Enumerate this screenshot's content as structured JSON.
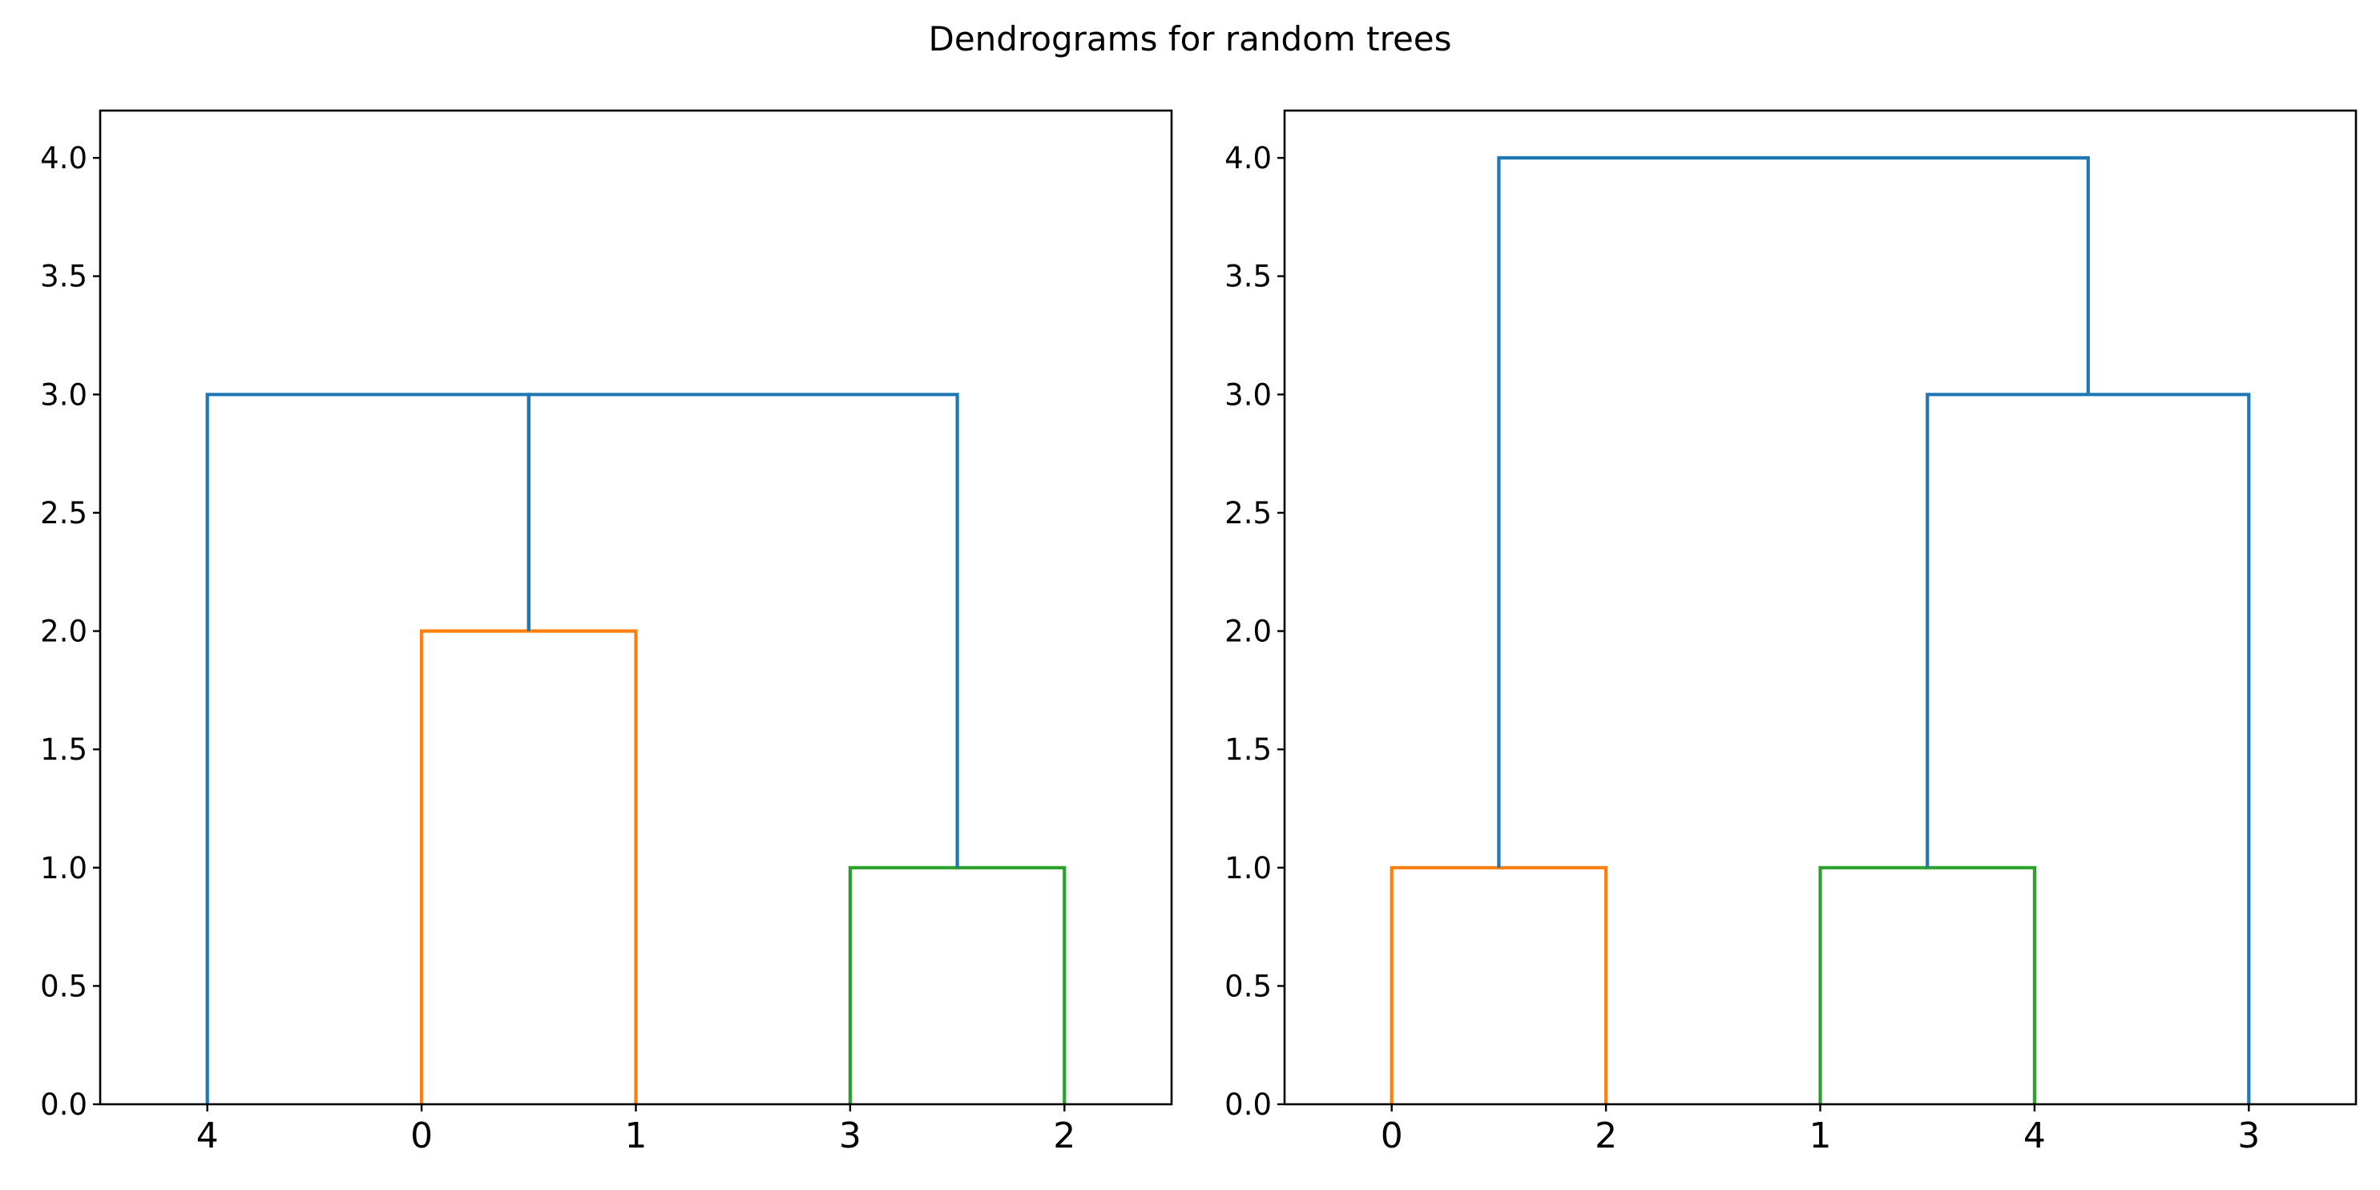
{
  "figure": {
    "title": "Dendrograms for random trees"
  },
  "chart_data": [
    {
      "type": "dendrogram",
      "ylim": [
        0,
        4.2
      ],
      "y_ticks": [
        "0.0",
        "0.5",
        "1.0",
        "1.5",
        "2.0",
        "2.5",
        "3.0",
        "3.5",
        "4.0"
      ],
      "leaf_order": [
        "4",
        "0",
        "1",
        "3",
        "2"
      ],
      "links": [
        {
          "x": [
            1,
            1,
            2,
            2
          ],
          "y": [
            0,
            2,
            2,
            0
          ],
          "color": "#ff7f0e"
        },
        {
          "x": [
            3,
            3,
            4,
            4
          ],
          "y": [
            0,
            1,
            1,
            0
          ],
          "color": "#2ca02c"
        },
        {
          "x": [
            0,
            0,
            1.5,
            1.5
          ],
          "y": [
            0,
            3,
            3,
            2
          ],
          "color": "#1f77b4"
        },
        {
          "x": [
            1.5,
            1.5,
            3.5,
            3.5
          ],
          "y": [
            2,
            3,
            3,
            1
          ],
          "color": "#1f77b4"
        }
      ]
    },
    {
      "type": "dendrogram",
      "ylim": [
        0,
        4.2
      ],
      "y_ticks": [
        "0.0",
        "0.5",
        "1.0",
        "1.5",
        "2.0",
        "2.5",
        "3.0",
        "3.5",
        "4.0"
      ],
      "leaf_order": [
        "0",
        "2",
        "1",
        "4",
        "3"
      ],
      "links": [
        {
          "x": [
            0,
            0,
            1,
            1
          ],
          "y": [
            0,
            1,
            1,
            0
          ],
          "color": "#ff7f0e"
        },
        {
          "x": [
            2,
            2,
            3,
            3
          ],
          "y": [
            0,
            1,
            1,
            0
          ],
          "color": "#2ca02c"
        },
        {
          "x": [
            2.5,
            2.5,
            4,
            4
          ],
          "y": [
            1,
            3,
            3,
            0
          ],
          "color": "#1f77b4"
        },
        {
          "x": [
            0.5,
            0.5,
            3.25,
            3.25
          ],
          "y": [
            1,
            4,
            4,
            3
          ],
          "color": "#1f77b4"
        }
      ]
    }
  ]
}
